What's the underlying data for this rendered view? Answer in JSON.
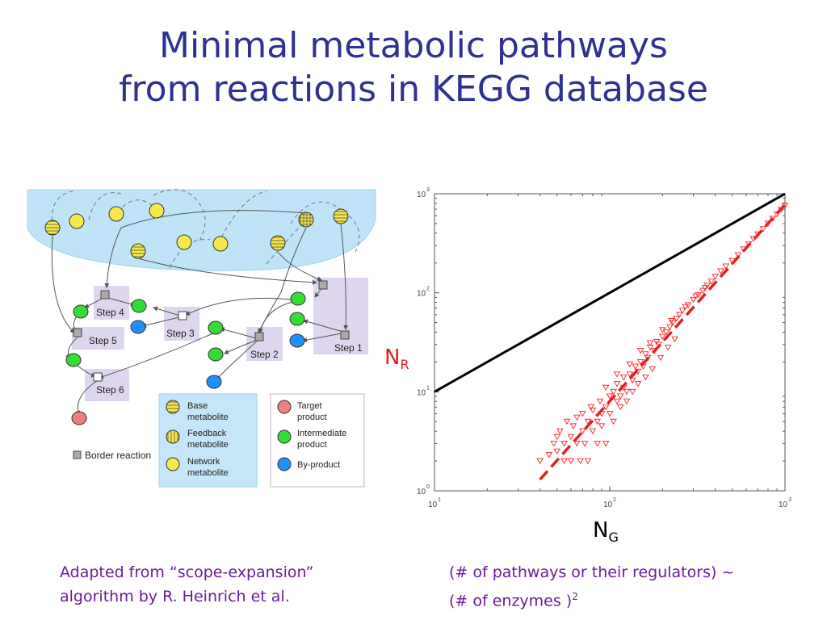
{
  "title": {
    "line1": "Minimal metabolic pathways",
    "line2": "from reactions in KEGG database"
  },
  "diagram": {
    "steps": [
      "Step 1",
      "Step 2",
      "Step 3",
      "Step 4",
      "Step 5",
      "Step 6"
    ],
    "border_reaction_label": "Border reaction",
    "legend_left": [
      {
        "icon": "base-metabolite-icon",
        "label1": "Base",
        "label2": "metabolite"
      },
      {
        "icon": "feedback-metabolite-icon",
        "label1": "Feedback",
        "label2": "metabolite"
      },
      {
        "icon": "network-metabolite-icon",
        "label1": "Network",
        "label2": "metabolite"
      }
    ],
    "legend_right": [
      {
        "icon": "target-product-icon",
        "label1": "Target",
        "label2": "product"
      },
      {
        "icon": "intermediate-product-icon",
        "label1": "Intermediate",
        "label2": "product"
      },
      {
        "icon": "by-product-icon",
        "label1": "By-product",
        "label2": ""
      }
    ],
    "colors": {
      "scope_region": "#bfe3f7",
      "legend_box": "#c5e6f8",
      "step_box": "#ddd6ee",
      "base": "#f5e94a",
      "target": "#f08080",
      "intermediate": "#33dd33",
      "byproduct": "#1e90ff"
    }
  },
  "chart_data": {
    "type": "scatter",
    "title": "",
    "xlabel": "N",
    "xlabel_sub": "G",
    "ylabel": "N",
    "ylabel_sub": "R",
    "xscale": "log",
    "yscale": "log",
    "xlim": [
      10,
      1000
    ],
    "ylim": [
      1,
      1000
    ],
    "x_ticks": [
      {
        "base": "10",
        "exp": "1"
      },
      {
        "base": "10",
        "exp": "2"
      },
      {
        "base": "10",
        "exp": "3"
      }
    ],
    "y_ticks": [
      {
        "base": "10",
        "exp": "0"
      },
      {
        "base": "10",
        "exp": "1"
      },
      {
        "base": "10",
        "exp": "2"
      },
      {
        "base": "10",
        "exp": "3"
      }
    ],
    "reference_line": {
      "points": [
        [
          10,
          10
        ],
        [
          1000,
          1000
        ]
      ],
      "color": "#000000"
    },
    "fit_line": {
      "points": [
        [
          40,
          1.3
        ],
        [
          1000,
          780
        ]
      ],
      "color": "#e02020",
      "style": "dashed"
    },
    "series": [
      {
        "marker": "triangle-down",
        "color": "#ff2020",
        "points": [
          [
            40,
            2.0
          ],
          [
            45,
            2.3
          ],
          [
            48,
            3.0
          ],
          [
            50,
            2.5
          ],
          [
            50,
            3.5
          ],
          [
            52,
            4.0
          ],
          [
            55,
            2.0
          ],
          [
            55,
            3.0
          ],
          [
            57,
            5.0
          ],
          [
            60,
            3.5
          ],
          [
            60,
            2.0
          ],
          [
            62,
            4.5
          ],
          [
            65,
            3.0
          ],
          [
            65,
            5.5
          ],
          [
            68,
            2.0
          ],
          [
            70,
            4.0
          ],
          [
            70,
            6.0
          ],
          [
            72,
            3.0
          ],
          [
            75,
            5.0
          ],
          [
            75,
            2.0
          ],
          [
            78,
            7.0
          ],
          [
            80,
            4.0
          ],
          [
            80,
            6.5
          ],
          [
            85,
            5.0
          ],
          [
            85,
            3.0
          ],
          [
            88,
            8.0
          ],
          [
            90,
            6.0
          ],
          [
            90,
            4.5
          ],
          [
            95,
            7.0
          ],
          [
            95,
            3.0
          ],
          [
            100,
            9.0
          ],
          [
            100,
            6.0
          ],
          [
            105,
            10.0
          ],
          [
            110,
            8.0
          ],
          [
            110,
            12.0
          ],
          [
            115,
            9.0
          ],
          [
            120,
            14.0
          ],
          [
            120,
            11.0
          ],
          [
            125,
            10.0
          ],
          [
            130,
            15.0
          ],
          [
            135,
            13.0
          ],
          [
            140,
            18.0
          ],
          [
            145,
            16.0
          ],
          [
            150,
            20.0
          ],
          [
            155,
            18.0
          ],
          [
            160,
            24.0
          ],
          [
            165,
            22.0
          ],
          [
            170,
            28.0
          ],
          [
            180,
            26.0
          ],
          [
            185,
            32.0
          ],
          [
            190,
            30.0
          ],
          [
            200,
            36.0
          ],
          [
            210,
            40.0
          ],
          [
            220,
            45.0
          ],
          [
            230,
            50.0
          ],
          [
            240,
            55.0
          ],
          [
            250,
            60.0
          ],
          [
            260,
            66.0
          ],
          [
            280,
            75.0
          ],
          [
            300,
            85.0
          ],
          [
            320,
            95.0
          ],
          [
            340,
            105.0
          ],
          [
            360,
            118.0
          ],
          [
            380,
            130.0
          ],
          [
            400,
            145.0
          ],
          [
            430,
            165.0
          ],
          [
            460,
            185.0
          ],
          [
            500,
            210.0
          ],
          [
            540,
            240.0
          ],
          [
            580,
            275.0
          ],
          [
            620,
            310.0
          ],
          [
            660,
            350.0
          ],
          [
            700,
            390.0
          ],
          [
            750,
            440.0
          ],
          [
            800,
            500.0
          ],
          [
            850,
            560.0
          ],
          [
            900,
            620.0
          ],
          [
            950,
            690.0
          ],
          [
            1000,
            760.0
          ],
          [
            105,
            5.0
          ],
          [
            115,
            7.0
          ],
          [
            125,
            8.0
          ],
          [
            135,
            10.0
          ],
          [
            145,
            12.0
          ],
          [
            160,
            14.0
          ],
          [
            175,
            17.0
          ],
          [
            195,
            22.0
          ],
          [
            215,
            28.0
          ],
          [
            235,
            34.0
          ],
          [
            95,
            11.0
          ],
          [
            110,
            15.0
          ],
          [
            130,
            19.0
          ],
          [
            150,
            26.0
          ],
          [
            170,
            31.0
          ],
          [
            200,
            42.0
          ],
          [
            225,
            52.0
          ],
          [
            270,
            72.0
          ],
          [
            310,
            92.0
          ],
          [
            350,
            112.0
          ]
        ]
      }
    ]
  },
  "caption_left": {
    "line1": "Adapted from “scope-expansion”",
    "line2": "algorithm by R. Heinrich et al."
  },
  "caption_right": {
    "line1": "(# of pathways or their regulators) ~",
    "line2": "(# of enzymes )",
    "sup": "2"
  }
}
